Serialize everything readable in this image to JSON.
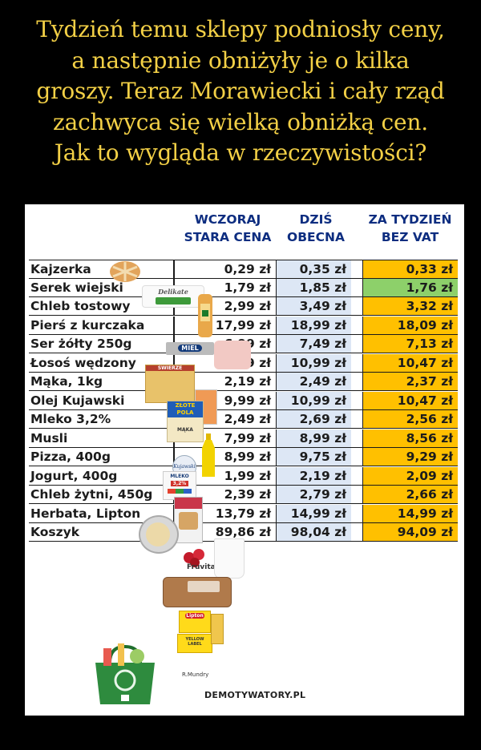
{
  "caption": [
    "Tydzień temu sklepy podniosły ceny,",
    "a następnie obniżyły je o kilka",
    "groszy. Teraz Morawiecki i cały rząd",
    "zachwyca się wielką obniżką cen.",
    "Jak to wygląda w rzeczywistości?"
  ],
  "headers": {
    "old": [
      "WCZORAJ",
      "STARA CENA"
    ],
    "now": [
      "DZIŚ",
      "OBECNA"
    ],
    "vat": [
      "ZA TYDZIEŃ",
      "BEZ VAT"
    ]
  },
  "rows": [
    {
      "name": "Kajzerka",
      "old": "0,29 zł",
      "now": "0,35 zł",
      "vat": "0,33 zł",
      "vat_color": "gold"
    },
    {
      "name": "Serek wiejski",
      "old": "1,79 zł",
      "now": "1,85 zł",
      "vat": "1,76 zł",
      "vat_color": "green"
    },
    {
      "name": "Chleb tostowy",
      "old": "2,99 zł",
      "now": "3,49 zł",
      "vat": "3,32 zł",
      "vat_color": "gold"
    },
    {
      "name": "Pierś z kurczaka",
      "old": "17,99 zł",
      "now": "18,99 zł",
      "vat": "18,09 zł",
      "vat_color": "gold"
    },
    {
      "name": "Ser żółty 250g",
      "old": "6,99 zł",
      "now": "7,49 zł",
      "vat": "7,13 zł",
      "vat_color": "gold"
    },
    {
      "name": "Łosoś wędzony",
      "old": "9,99 zł",
      "now": "10,99 zł",
      "vat": "10,47 zł",
      "vat_color": "gold"
    },
    {
      "name": "Mąka, 1kg",
      "old": "2,19 zł",
      "now": "2,49 zł",
      "vat": "2,37 zł",
      "vat_color": "gold"
    },
    {
      "name": "Olej Kujawski",
      "old": "9,99 zł",
      "now": "10,99 zł",
      "vat": "10,47 zł",
      "vat_color": "gold"
    },
    {
      "name": "Mleko 3,2%",
      "old": "2,49 zł",
      "now": "2,69 zł",
      "vat": "2,56 zł",
      "vat_color": "gold"
    },
    {
      "name": "Musli",
      "old": "7,99 zł",
      "now": "8,99 zł",
      "vat": "8,56 zł",
      "vat_color": "gold"
    },
    {
      "name": "Pizza, 400g",
      "old": "8,99 zł",
      "now": "9,75 zł",
      "vat": "9,29 zł",
      "vat_color": "gold"
    },
    {
      "name": "Jogurt, 400g",
      "old": "1,99 zł",
      "now": "2,19 zł",
      "vat": "2,09 zł",
      "vat_color": "gold"
    },
    {
      "name": "Chleb żytni, 450g",
      "old": "2,39 zł",
      "now": "2,79 zł",
      "vat": "2,66 zł",
      "vat_color": "gold"
    },
    {
      "name": "Herbata, Lipton",
      "old": "13,79 zł",
      "now": "14,99 zł",
      "vat": "14,99 zł",
      "vat_color": "gold"
    },
    {
      "name": "Koszyk",
      "old": "89,86 zł",
      "now": "98,04 zł",
      "vat": "94,09 zł",
      "vat_color": "gold"
    }
  ],
  "product_labels": {
    "serek": "Delikate",
    "kurczak": "MIEL",
    "ser": "SWIERZE",
    "maka_brand": "ZŁOTE POLA",
    "maka": "MĄKA",
    "mleko": "MLEKO",
    "mleko_pct": "3,2%",
    "olej": "Kujawski",
    "jogurt": "Fruvita",
    "herbata": "Lipton",
    "herbata_label": "YELLOW LABEL"
  },
  "credit": "R.Mundry",
  "watermark": "DEMOTYWATORY.PL",
  "colors": {
    "caption": "#f3d046",
    "header": "#0d2d80",
    "now_column": "#dde7f5",
    "vat_gold": "#ffc000",
    "vat_green": "#8dd06a"
  }
}
